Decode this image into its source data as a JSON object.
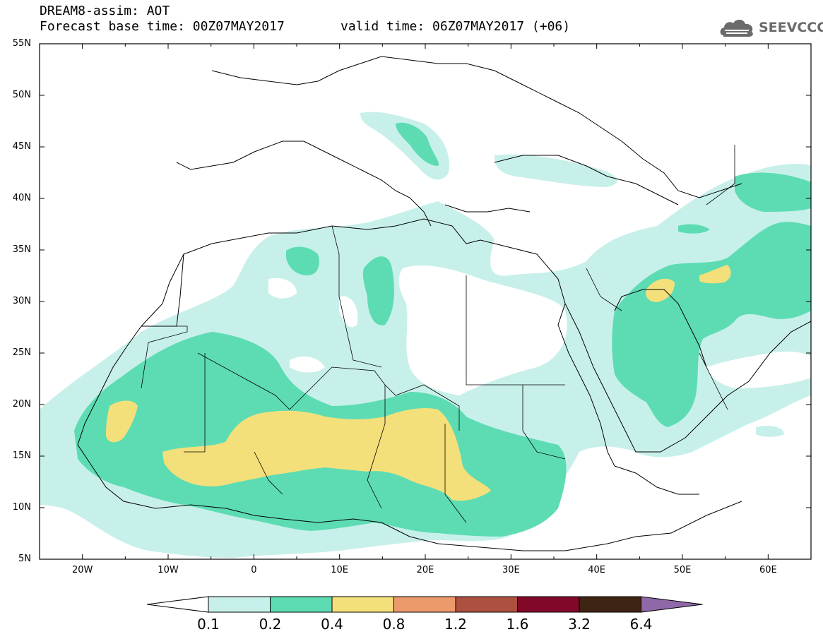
{
  "header": {
    "title": "DREAM8-assim: AOT",
    "base_time": "Forecast base time: 00Z07MAY2017",
    "valid_time": "valid time: 06Z07MAY2017 (+06)"
  },
  "logo": {
    "text": "SEEVCCC",
    "icon": "cloud-logo-icon"
  },
  "map": {
    "lat_labels": [
      "55N",
      "50N",
      "45N",
      "40N",
      "35N",
      "30N",
      "25N",
      "20N",
      "15N",
      "10N",
      "5N"
    ],
    "lon_labels": [
      "20W",
      "10W",
      "0",
      "10E",
      "20E",
      "30E",
      "40E",
      "50E",
      "60E"
    ],
    "lon_range": [
      -25,
      65
    ],
    "lat_range": [
      5,
      55
    ]
  },
  "colorbar": {
    "levels": [
      "0.1",
      "0.2",
      "0.4",
      "0.8",
      "1.2",
      "1.6",
      "3.2",
      "6.4"
    ],
    "colors": [
      "#c8f0ea",
      "#5ddcb4",
      "#f4e07a",
      "#ec9a6c",
      "#ae5040",
      "#82082a",
      "#3e2412",
      "#8e68a8"
    ]
  },
  "field_colors": {
    "c1": "#c8f0ea",
    "c2": "#5ddcb4",
    "c3": "#f4e07a"
  }
}
